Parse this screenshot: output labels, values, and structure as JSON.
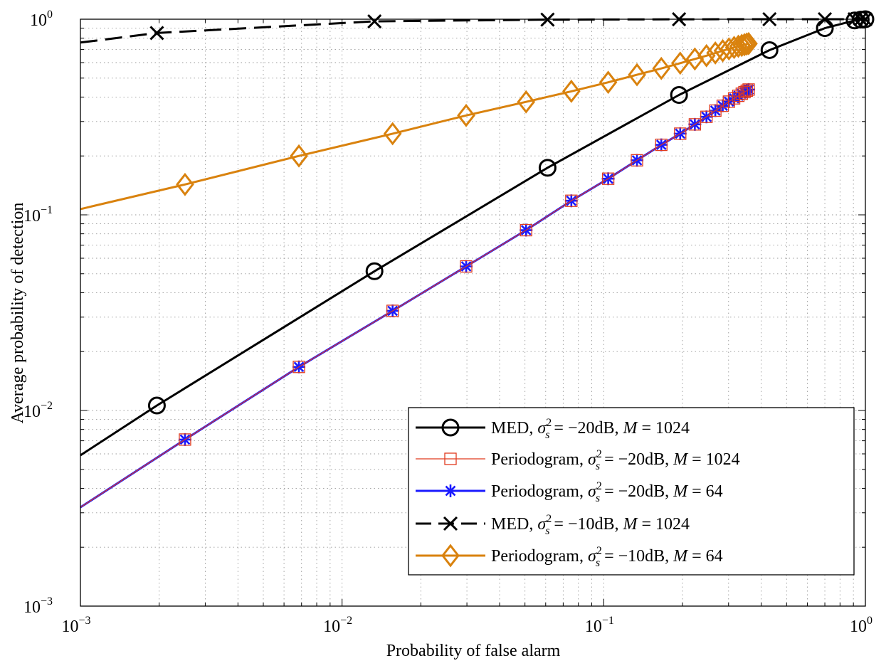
{
  "chart_data": {
    "type": "line",
    "xscale": "log",
    "yscale": "log",
    "xlim": [
      0.001,
      1
    ],
    "ylim": [
      0.001,
      1
    ],
    "grid": true,
    "xlabel": "Probability of false alarm",
    "ylabel": "Average probability of detection",
    "xticks": [
      {
        "base": "10",
        "exp": "−3"
      },
      {
        "base": "10",
        "exp": "−2"
      },
      {
        "base": "10",
        "exp": "−1"
      },
      {
        "base": "10",
        "exp": "0"
      }
    ],
    "yticks": [
      {
        "base": "10",
        "exp": "−3"
      },
      {
        "base": "10",
        "exp": "−2"
      },
      {
        "base": "10",
        "exp": "−1"
      },
      {
        "base": "10",
        "exp": "0"
      }
    ],
    "legend_position": "lower-right",
    "series": [
      {
        "name": "MED, σ_s² = −20dB, M = 1024",
        "legend": {
          "method": "MED, ",
          "sigma": "σ",
          "sub": "s",
          "sup": "2",
          "mid": " = −20dB, ",
          "m": "M",
          "tail": " = 1024"
        },
        "color": "#000000",
        "dash": "",
        "marker": "circle",
        "width": 3,
        "x": [
          0.001,
          0.00196,
          0.0133,
          0.061,
          0.194,
          0.43,
          0.7,
          0.91,
          0.96,
          1.0
        ],
        "y": [
          0.0059,
          0.0106,
          0.0515,
          0.174,
          0.41,
          0.695,
          0.9,
          0.985,
          0.995,
          1.0
        ],
        "markers_x": [
          0.00196,
          0.0133,
          0.061,
          0.194,
          0.43,
          0.7,
          0.91,
          0.96,
          1.0
        ],
        "markers_y": [
          0.0106,
          0.0515,
          0.174,
          0.41,
          0.695,
          0.9,
          0.985,
          0.995,
          1.0
        ]
      },
      {
        "name": "Periodogram, σ_s² = −20dB, M = 1024",
        "legend": {
          "method": "Periodogram, ",
          "sigma": "σ",
          "sub": "s",
          "sup": "2",
          "mid": " = −20dB, ",
          "m": "M",
          "tail": " = 1024"
        },
        "color": "#e03a1e",
        "dash": "",
        "marker": "square",
        "width": 1.2,
        "x": [
          0.001,
          0.00251,
          0.00684,
          0.0156,
          0.0298,
          0.0505,
          0.0752,
          0.104,
          0.134,
          0.166,
          0.196,
          0.223,
          0.247,
          0.267,
          0.285,
          0.301,
          0.315,
          0.327,
          0.337,
          0.345,
          0.352,
          0.358
        ],
        "y": [
          0.0032,
          0.0071,
          0.0167,
          0.0323,
          0.0545,
          0.0835,
          0.118,
          0.153,
          0.19,
          0.228,
          0.26,
          0.29,
          0.317,
          0.341,
          0.361,
          0.379,
          0.394,
          0.406,
          0.416,
          0.424,
          0.431,
          0.437
        ],
        "markers_x": [
          0.00251,
          0.00684,
          0.0156,
          0.0298,
          0.0505,
          0.0752,
          0.104,
          0.134,
          0.166,
          0.196,
          0.223,
          0.247,
          0.267,
          0.285,
          0.301,
          0.315,
          0.327,
          0.337,
          0.345,
          0.352,
          0.358
        ],
        "markers_y": [
          0.0071,
          0.0167,
          0.0323,
          0.0545,
          0.0835,
          0.118,
          0.153,
          0.19,
          0.228,
          0.26,
          0.29,
          0.317,
          0.341,
          0.361,
          0.379,
          0.394,
          0.406,
          0.416,
          0.424,
          0.431,
          0.437
        ]
      },
      {
        "name": "Periodogram, σ_s² = −20dB, M = 64",
        "legend": {
          "method": "Periodogram, ",
          "sigma": "σ",
          "sub": "s",
          "sup": "2",
          "mid": " = −20dB, ",
          "m": "M",
          "tail": " = 64"
        },
        "color": "#1a1aff",
        "dash": "",
        "marker": "asterisk",
        "width": 3,
        "x": [
          0.001,
          0.00251,
          0.00684,
          0.0156,
          0.0298,
          0.0505,
          0.0752,
          0.104,
          0.134,
          0.166,
          0.196,
          0.223,
          0.247,
          0.267,
          0.285,
          0.301,
          0.315,
          0.327,
          0.337,
          0.345,
          0.352,
          0.358
        ],
        "y": [
          0.0032,
          0.0071,
          0.0167,
          0.0323,
          0.0545,
          0.0835,
          0.118,
          0.153,
          0.19,
          0.228,
          0.26,
          0.29,
          0.317,
          0.341,
          0.361,
          0.379,
          0.394,
          0.406,
          0.416,
          0.424,
          0.431,
          0.437
        ],
        "markers_x": [
          0.00251,
          0.00684,
          0.0156,
          0.0298,
          0.0505,
          0.0752,
          0.104,
          0.134,
          0.166,
          0.196,
          0.223,
          0.247,
          0.267,
          0.285,
          0.301,
          0.315,
          0.327,
          0.337,
          0.345,
          0.352,
          0.358
        ],
        "markers_y": [
          0.0071,
          0.0167,
          0.0323,
          0.0545,
          0.0835,
          0.118,
          0.153,
          0.19,
          0.228,
          0.26,
          0.29,
          0.317,
          0.341,
          0.361,
          0.379,
          0.394,
          0.406,
          0.416,
          0.424,
          0.431,
          0.437
        ]
      },
      {
        "name": "MED, σ_s² = −10dB, M = 1024",
        "legend": {
          "method": "MED, ",
          "sigma": "σ",
          "sub": "s",
          "sup": "2",
          "mid": " = −10dB, ",
          "m": "M",
          "tail": " = 1024"
        },
        "color": "#000000",
        "dash": "24,11",
        "marker": "x",
        "width": 3,
        "x": [
          0.001,
          0.00196,
          0.0133,
          0.061,
          0.194,
          0.43,
          0.7,
          0.91,
          0.96,
          1.0
        ],
        "y": [
          0.76,
          0.85,
          0.975,
          0.995,
          0.999,
          1.0,
          1.0,
          1.0,
          1.0,
          1.0
        ],
        "markers_x": [
          0.00196,
          0.0133,
          0.061,
          0.194,
          0.43,
          0.7,
          0.91,
          0.96,
          1.0
        ],
        "markers_y": [
          0.85,
          0.975,
          0.995,
          0.999,
          1.0,
          1.0,
          1.0,
          1.0,
          1.0
        ]
      },
      {
        "name": "Periodogram, σ_s² = −10dB, M = 64",
        "legend": {
          "method": "Periodogram, ",
          "sigma": "σ",
          "sub": "s",
          "sup": "2",
          "mid": " = −10dB, ",
          "m": "M",
          "tail": " = 64"
        },
        "color": "#d9820e",
        "dash": "",
        "marker": "diamond",
        "width": 3,
        "x": [
          0.001,
          0.00251,
          0.00684,
          0.0156,
          0.0298,
          0.0505,
          0.0752,
          0.104,
          0.134,
          0.166,
          0.196,
          0.223,
          0.247,
          0.267,
          0.285,
          0.301,
          0.315,
          0.327,
          0.337,
          0.345,
          0.352,
          0.358
        ],
        "y": [
          0.107,
          0.143,
          0.2,
          0.26,
          0.322,
          0.378,
          0.428,
          0.476,
          0.52,
          0.56,
          0.596,
          0.626,
          0.651,
          0.672,
          0.69,
          0.705,
          0.717,
          0.727,
          0.735,
          0.741,
          0.746,
          0.75
        ],
        "markers_x": [
          0.00251,
          0.00684,
          0.0156,
          0.0298,
          0.0505,
          0.0752,
          0.104,
          0.134,
          0.166,
          0.196,
          0.223,
          0.247,
          0.267,
          0.285,
          0.301,
          0.315,
          0.327,
          0.337,
          0.345,
          0.352,
          0.358
        ],
        "markers_y": [
          0.143,
          0.2,
          0.26,
          0.322,
          0.378,
          0.428,
          0.476,
          0.52,
          0.56,
          0.596,
          0.626,
          0.651,
          0.672,
          0.69,
          0.705,
          0.717,
          0.727,
          0.735,
          0.741,
          0.746,
          0.75
        ]
      }
    ]
  }
}
